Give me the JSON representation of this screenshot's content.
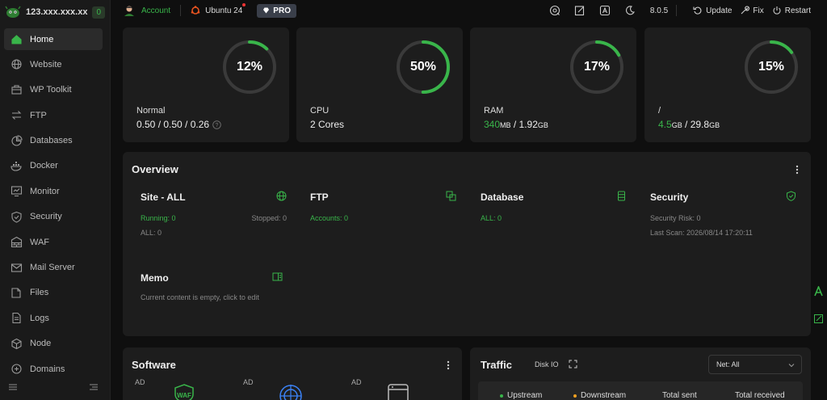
{
  "sidebar": {
    "hostname": "123.xxx.xxx.xx",
    "badge": "0",
    "items": [
      {
        "label": "Home",
        "icon": "home-icon",
        "active": true
      },
      {
        "label": "Website",
        "icon": "globe-icon"
      },
      {
        "label": "WP Toolkit",
        "icon": "toolkit-icon"
      },
      {
        "label": "FTP",
        "icon": "transfer-icon"
      },
      {
        "label": "Databases",
        "icon": "database-icon"
      },
      {
        "label": "Docker",
        "icon": "docker-icon"
      },
      {
        "label": "Monitor",
        "icon": "monitor-icon"
      },
      {
        "label": "Security",
        "icon": "shield-icon"
      },
      {
        "label": "WAF",
        "icon": "firewall-icon"
      },
      {
        "label": "Mail Server",
        "icon": "mail-icon"
      },
      {
        "label": "Files",
        "icon": "folder-icon"
      },
      {
        "label": "Logs",
        "icon": "log-icon"
      },
      {
        "label": "Node",
        "icon": "cube-icon"
      },
      {
        "label": "Domains",
        "icon": "domain-icon"
      }
    ]
  },
  "topbar": {
    "account": "Account",
    "os": "Ubuntu 24",
    "pro": "PRO",
    "version": "8.0.5",
    "update": "Update",
    "fix": "Fix",
    "restart": "Restart"
  },
  "stats": [
    {
      "percent": "12%",
      "fraction": 0.12,
      "label": "Normal",
      "value_plain": "0.50 / 0.50 / 0.26"
    },
    {
      "percent": "50%",
      "fraction": 0.5,
      "label": "CPU",
      "value_plain": "2 Cores"
    },
    {
      "percent": "17%",
      "fraction": 0.17,
      "label": "RAM",
      "used": "340",
      "used_unit": "MB",
      "total": " / 1.92",
      "total_unit": "GB"
    },
    {
      "percent": "15%",
      "fraction": 0.15,
      "label": "/",
      "used": "4.5",
      "used_unit": "GB",
      "total": " / 29.8",
      "total_unit": "GB"
    }
  ],
  "overview": {
    "title": "Overview",
    "site": {
      "title": "Site - ALL",
      "running": "Running: 0",
      "stopped": "Stopped: 0",
      "all": "ALL: 0"
    },
    "ftp": {
      "title": "FTP",
      "accounts": "Accounts: 0"
    },
    "database": {
      "title": "Database",
      "all": "ALL: 0"
    },
    "security": {
      "title": "Security",
      "risk": "Security Risk: 0",
      "scan": "Last Scan: 2026/08/14 17:20:11"
    },
    "memo": {
      "title": "Memo",
      "text": "Current content is empty, click to edit"
    }
  },
  "software": {
    "title": "Software",
    "ad": "AD",
    "waf": "WAF"
  },
  "traffic": {
    "title": "Traffic",
    "disk_io": "Disk IO",
    "select": "Net: All",
    "upstream": "Upstream",
    "downstream": "Downstream",
    "total_sent": "Total sent",
    "total_received": "Total received"
  },
  "colors": {
    "accent": "#39b54a",
    "orange": "#f0a020"
  }
}
